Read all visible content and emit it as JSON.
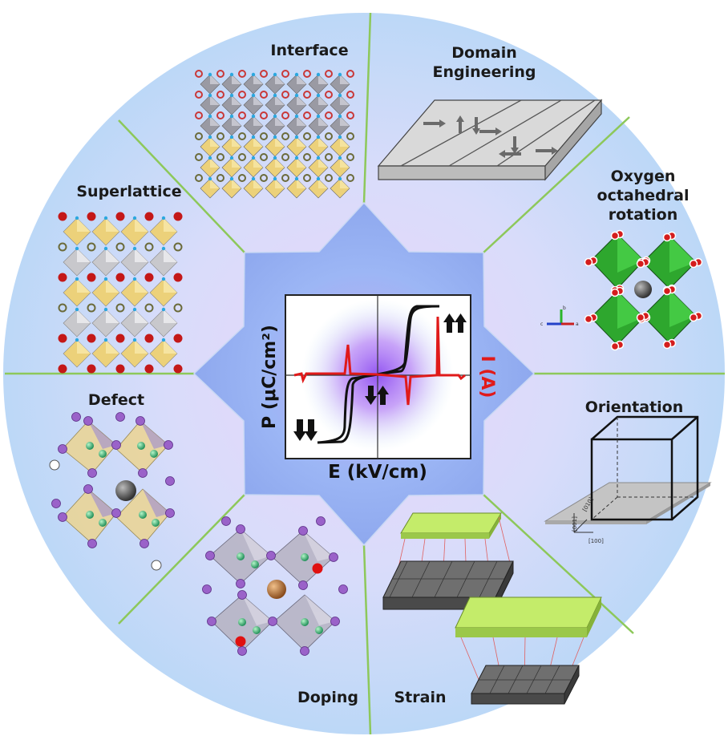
{
  "segments": {
    "interface": "Interface",
    "domain_engineering_1": "Domain",
    "domain_engineering_2": "Engineering",
    "oxygen_1": "Oxygen",
    "oxygen_2": "octahedral",
    "oxygen_3": "rotation",
    "superlattice": "Superlattice",
    "defect": "Defect",
    "orientation": "Orientation",
    "doping": "Doping",
    "strain": "Strain"
  },
  "center": {
    "y_axis": "P (μC/cm²)",
    "x_axis": "E (kV/cm)",
    "right_axis": "I (A)"
  },
  "orientation_axes": {
    "a": "[100]",
    "b": "[010]",
    "c": "[001]"
  },
  "crystal_axes": {
    "a": "a",
    "b": "b",
    "c": "c"
  },
  "colors": {
    "outer_circle": "#c9defa",
    "segment_lines": "#8dc85a",
    "center_star": "#9db8f4",
    "hysteresis_loop": "#111111",
    "current_curve": "#e01a1a",
    "octahedra_yellow": "#f0d98a",
    "octahedra_green": "#3cbf3c",
    "octahedra_grey": "#b8b8c2"
  }
}
